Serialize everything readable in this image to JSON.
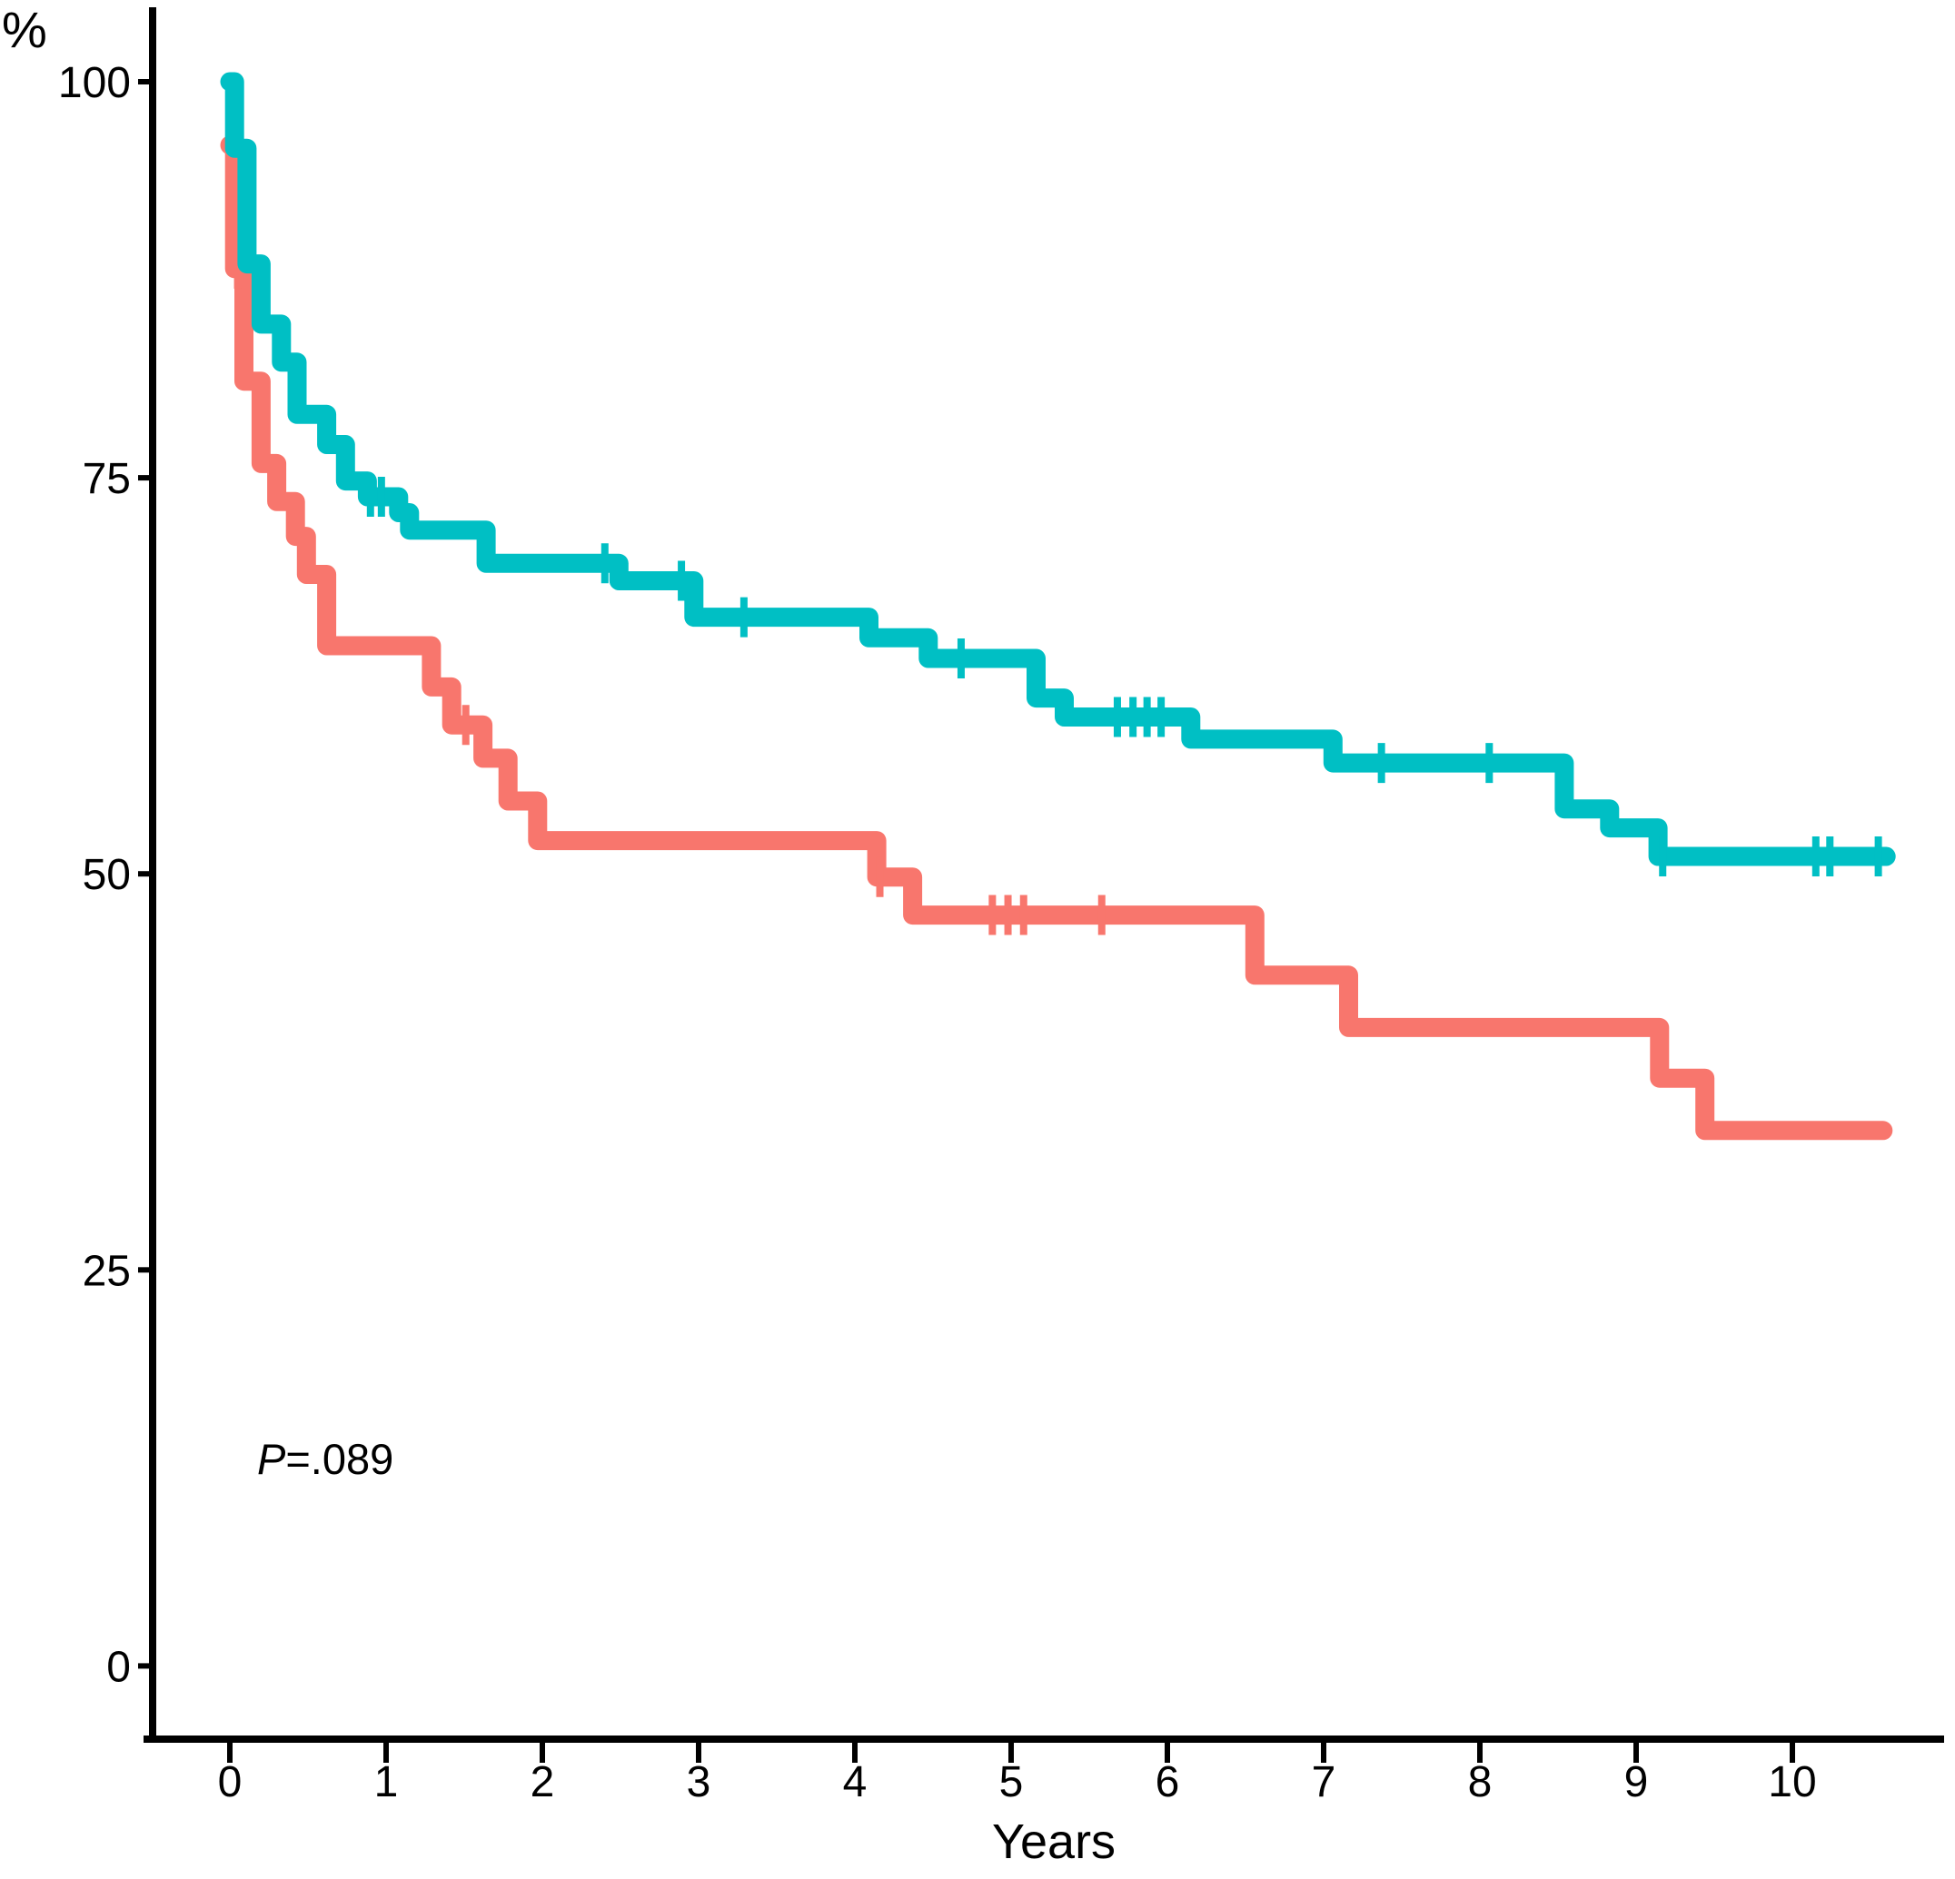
{
  "figure": {
    "background_color": "#ffffff",
    "axis_color": "#000000",
    "y_axis_unit_label": "%",
    "x_axis_title": "Years",
    "p_value_annotation": {
      "italic_part": "P",
      "plain_part": "=.089"
    }
  },
  "chart_data": {
    "type": "line",
    "subtype": "kaplan-meier-step-survival",
    "title": "",
    "xlabel": "Years",
    "ylabel": "%",
    "x_ticks": [
      0,
      1,
      2,
      3,
      4,
      5,
      6,
      7,
      8,
      9,
      10
    ],
    "y_ticks": [
      0,
      25,
      50,
      75,
      100
    ],
    "xlim": [
      0,
      10.6
    ],
    "ylim": [
      0,
      100
    ],
    "grid": false,
    "legend": "none",
    "annotations": [
      {
        "text": "P=.089",
        "position": "bottom-left"
      }
    ],
    "series": [
      {
        "id": "red",
        "color": "#F8766D",
        "steps": [
          [
            0,
            96.0
          ],
          [
            0.03,
            88.2
          ],
          [
            0.09,
            81.1
          ],
          [
            0.2,
            75.9
          ],
          [
            0.3,
            73.5
          ],
          [
            0.42,
            71.3
          ],
          [
            0.49,
            68.9
          ],
          [
            0.62,
            64.4
          ],
          [
            1.29,
            61.8
          ],
          [
            1.42,
            59.4
          ],
          [
            1.62,
            57.3
          ],
          [
            1.78,
            54.6
          ],
          [
            1.97,
            52.1
          ],
          [
            4.14,
            49.8
          ],
          [
            4.37,
            47.4
          ],
          [
            6.56,
            43.6
          ],
          [
            7.16,
            40.3
          ],
          [
            9.15,
            37.1
          ],
          [
            9.44,
            33.8
          ]
        ],
        "end_time": 10.58,
        "censor_marks": [
          [
            0.05,
            88.2
          ],
          [
            1.51,
            59.4
          ],
          [
            4.16,
            49.8
          ],
          [
            4.88,
            47.4
          ],
          [
            4.98,
            47.4
          ],
          [
            5.08,
            47.4
          ],
          [
            5.58,
            47.4
          ]
        ]
      },
      {
        "id": "teal",
        "color": "#00BFC4",
        "steps": [
          [
            0,
            100.0
          ],
          [
            0.03,
            95.8
          ],
          [
            0.11,
            88.5
          ],
          [
            0.2,
            84.7
          ],
          [
            0.33,
            82.3
          ],
          [
            0.43,
            79.0
          ],
          [
            0.62,
            77.1
          ],
          [
            0.74,
            74.8
          ],
          [
            0.88,
            73.8
          ],
          [
            1.08,
            72.8
          ],
          [
            1.15,
            71.7
          ],
          [
            1.64,
            69.6
          ],
          [
            2.49,
            68.5
          ],
          [
            2.97,
            66.2
          ],
          [
            4.09,
            64.9
          ],
          [
            4.47,
            63.6
          ],
          [
            5.16,
            61.1
          ],
          [
            5.34,
            59.9
          ],
          [
            6.15,
            58.5
          ],
          [
            7.06,
            57.0
          ],
          [
            8.54,
            54.1
          ],
          [
            8.83,
            52.9
          ],
          [
            9.14,
            51.1
          ]
        ],
        "end_time": 10.6,
        "censor_marks": [
          [
            0.9,
            73.8
          ],
          [
            0.97,
            73.8
          ],
          [
            2.4,
            69.6
          ],
          [
            2.89,
            68.5
          ],
          [
            3.29,
            66.2
          ],
          [
            4.68,
            63.6
          ],
          [
            5.68,
            59.9
          ],
          [
            5.78,
            59.9
          ],
          [
            5.87,
            59.9
          ],
          [
            5.96,
            59.9
          ],
          [
            7.37,
            57.0
          ],
          [
            8.06,
            57.0
          ],
          [
            9.17,
            51.1
          ],
          [
            10.15,
            51.1
          ],
          [
            10.24,
            51.1
          ],
          [
            10.55,
            51.1
          ]
        ]
      }
    ]
  }
}
